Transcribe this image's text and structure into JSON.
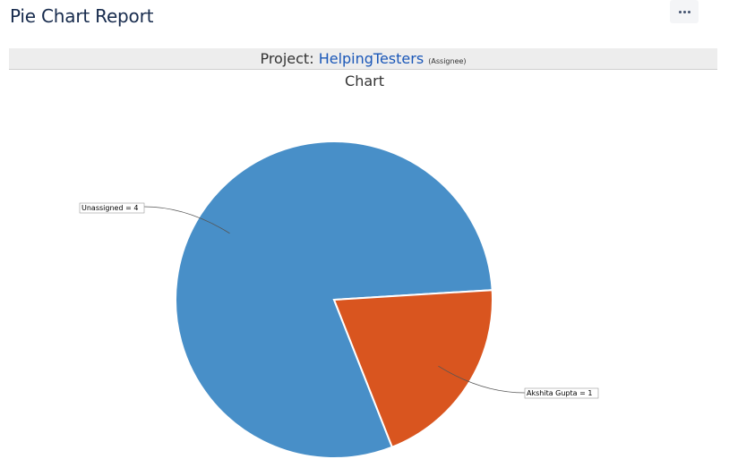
{
  "header": {
    "title": "Pie Chart Report",
    "more_icon": "more-horizontal-icon"
  },
  "project_bar": {
    "prefix": "Project:",
    "project_name": "HelpingTesters",
    "statistic_type": "(Assignee)"
  },
  "chart_data": {
    "type": "pie",
    "title": "Chart",
    "slices": [
      {
        "label": "Unassigned",
        "value": 4,
        "display": "Unassigned = 4",
        "color": "#488fc8"
      },
      {
        "label": "Akshita Gupta",
        "value": 1,
        "display": "Akshita Gupta = 1",
        "color": "#d9551f"
      }
    ]
  }
}
